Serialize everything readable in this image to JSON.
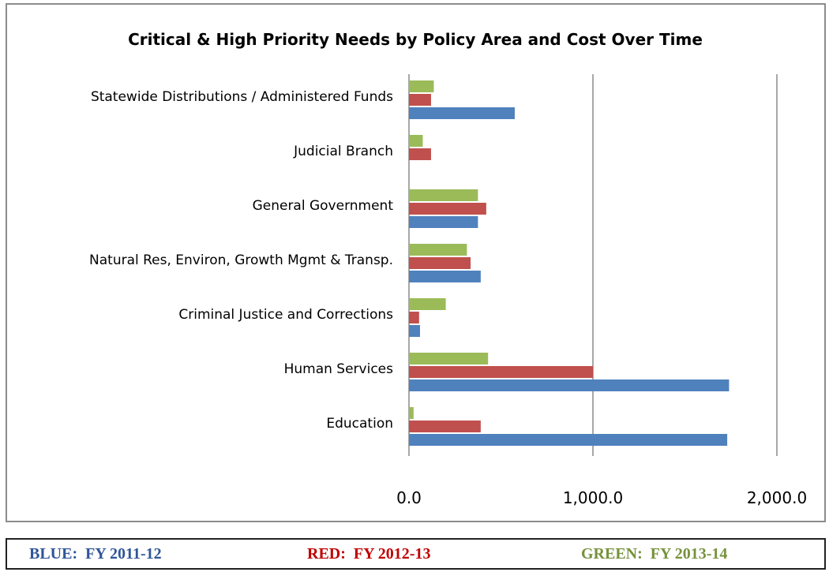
{
  "chart_data": {
    "type": "bar",
    "orientation": "horizontal",
    "title": "Critical & High Priority Needs by Policy  Area and Cost Over Time",
    "categories": [
      "Statewide Distributions / Administered Funds",
      "Judicial Branch",
      "General Government",
      "Natural Res, Environ, Growth Mgmt & Transp.",
      "Criminal Justice and Corrections",
      "Human Services",
      "Education"
    ],
    "series": [
      {
        "key": "fy2011",
        "color": "#4f81bd",
        "values": [
          575,
          0,
          375,
          390,
          60,
          1740,
          1730
        ]
      },
      {
        "key": "fy2012",
        "color": "#c0504d",
        "values": [
          120,
          120,
          420,
          335,
          55,
          1000,
          390
        ]
      },
      {
        "key": "fy2013",
        "color": "#9bbb59",
        "values": [
          135,
          75,
          375,
          315,
          200,
          430,
          25
        ]
      }
    ],
    "xlim": [
      0,
      2000
    ],
    "xticks": [
      0,
      1000,
      2000
    ],
    "xtick_labels": [
      "0.0",
      "1,000.0",
      "2,000.0"
    ],
    "grid": true,
    "legend_position": "bottom"
  },
  "legend": {
    "blue": {
      "text": "BLUE:  FY 2011-12",
      "color": "#2f5597"
    },
    "red": {
      "text": "RED:  FY 2012-13",
      "color": "#c00000"
    },
    "green": {
      "text": "GREEN:  FY 2013-14",
      "color": "#76923c"
    }
  }
}
